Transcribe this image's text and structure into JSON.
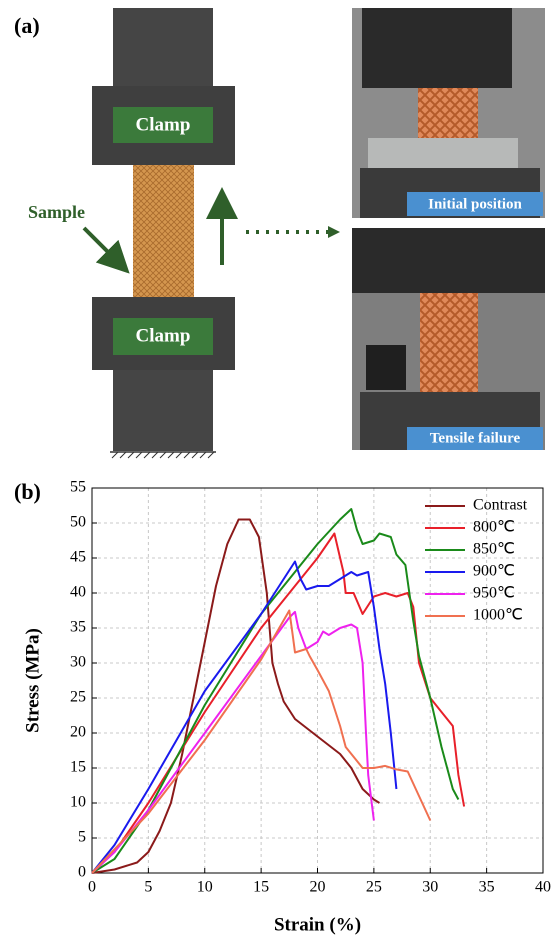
{
  "panel_a": {
    "label": "(a)",
    "clamp_top": "Clamp",
    "clamp_bottom": "Clamp",
    "sample": "Sample",
    "photo_top": "Initial position",
    "photo_bottom": "Tensile failure"
  },
  "panel_b": {
    "label": "(b)"
  },
  "chart_data": {
    "type": "line",
    "x_label": "Strain (%)",
    "y_label": "Stress (MPa)",
    "xlim": [
      0,
      40
    ],
    "ylim": [
      0,
      55
    ],
    "xticks": [
      0,
      5,
      10,
      15,
      20,
      25,
      30,
      35,
      40
    ],
    "yticks": [
      0,
      5,
      10,
      15,
      20,
      25,
      30,
      35,
      40,
      45,
      50,
      55
    ],
    "grid": true,
    "legend": "upper right",
    "series": [
      {
        "name": "Contrast",
        "color": "#8b1a1a",
        "x": [
          0,
          2,
          4,
          5,
          6,
          7,
          8,
          9,
          10,
          11,
          12,
          13,
          14,
          14.8,
          15.5,
          16,
          16.5,
          17,
          18,
          20,
          22,
          23,
          24,
          25,
          25.5
        ],
        "values": [
          0,
          0.5,
          1.5,
          3,
          6,
          10,
          17,
          25,
          33,
          41,
          47,
          50.5,
          50.5,
          48,
          40,
          30,
          27,
          24.5,
          22,
          19.5,
          17,
          15,
          12,
          10.5,
          10
        ]
      },
      {
        "name": "800℃",
        "color": "#e8202a",
        "x": [
          0,
          2,
          5,
          10,
          15,
          20,
          21.5,
          22.3,
          22.5,
          23.2,
          24,
          25,
          26,
          27,
          28,
          28.5,
          29,
          30,
          31,
          32,
          32.5,
          33
        ],
        "values": [
          0,
          3,
          10,
          23,
          35,
          45,
          48.5,
          43,
          40,
          40,
          37,
          39.5,
          40,
          39.5,
          40,
          38,
          30,
          25,
          23,
          21,
          14,
          9.5
        ]
      },
      {
        "name": "850℃",
        "color": "#1a8a1a",
        "x": [
          0,
          2,
          5,
          10,
          15,
          20,
          22,
          23,
          23.5,
          24,
          25,
          25.5,
          26.5,
          27,
          27.8,
          28.5,
          29,
          30,
          31,
          32,
          32.5
        ],
        "values": [
          0,
          2,
          9,
          24,
          37,
          47,
          50.5,
          52,
          49,
          47,
          47.5,
          48.5,
          48,
          45.5,
          44,
          36,
          31,
          25,
          18,
          12,
          10.5
        ]
      },
      {
        "name": "900℃",
        "color": "#1a1aee",
        "x": [
          0,
          2,
          5,
          10,
          15,
          18,
          18.5,
          19,
          20,
          21,
          22,
          23,
          23.5,
          24.5,
          25,
          25.5,
          26,
          26.5,
          27
        ],
        "values": [
          0,
          4,
          12,
          26,
          37,
          44.5,
          42,
          40.5,
          41,
          41,
          42,
          43,
          42.5,
          43,
          38,
          32,
          27,
          20,
          12
        ]
      },
      {
        "name": "950℃",
        "color": "#ee22ee",
        "x": [
          0,
          2,
          5,
          10,
          15,
          17.5,
          18,
          18.3,
          19,
          20,
          20.5,
          21,
          22,
          23,
          23.5,
          24,
          24.3,
          24.5,
          25
        ],
        "values": [
          0,
          3,
          9,
          20,
          31,
          36.5,
          37.3,
          35,
          32,
          33,
          34.5,
          34,
          35,
          35.5,
          35,
          30,
          20,
          14,
          7.5
        ]
      },
      {
        "name": "1000℃",
        "color": "#f07050",
        "x": [
          0,
          5,
          10,
          15,
          17.5,
          17.8,
          18,
          19,
          19.3,
          20,
          21,
          22,
          22.5,
          23.5,
          24,
          25,
          26,
          27,
          28,
          29,
          30
        ],
        "values": [
          0,
          8.5,
          19,
          30.5,
          37.5,
          34,
          31.5,
          32,
          31,
          29,
          26,
          21,
          18,
          16,
          15,
          15,
          15.3,
          14.8,
          14.5,
          11,
          7.5
        ]
      }
    ]
  }
}
